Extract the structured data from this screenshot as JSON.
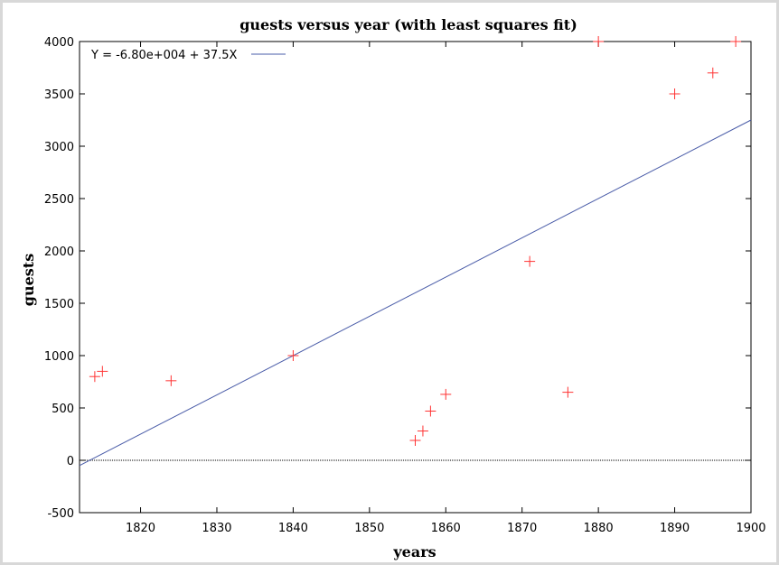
{
  "chart_data": {
    "type": "scatter",
    "title": "guests versus year (with least squares fit)",
    "xlabel": "years",
    "ylabel": "guests",
    "xlim": [
      1812,
      1900
    ],
    "ylim": [
      -500,
      4000
    ],
    "xticks": [
      1820,
      1830,
      1840,
      1850,
      1860,
      1870,
      1880,
      1890,
      1900
    ],
    "yticks": [
      -500,
      0,
      500,
      1000,
      1500,
      2000,
      2500,
      3000,
      3500,
      4000
    ],
    "zero_line": true,
    "grid": false,
    "legend_position": "top-left",
    "series": [
      {
        "type": "scatter",
        "marker": "plus",
        "color": "#ff3333",
        "points": [
          {
            "x": 1814,
            "y": 800
          },
          {
            "x": 1815,
            "y": 850
          },
          {
            "x": 1824,
            "y": 760
          },
          {
            "x": 1840,
            "y": 1000
          },
          {
            "x": 1856,
            "y": 190
          },
          {
            "x": 1857,
            "y": 280
          },
          {
            "x": 1858,
            "y": 470
          },
          {
            "x": 1860,
            "y": 630
          },
          {
            "x": 1871,
            "y": 1900
          },
          {
            "x": 1876,
            "y": 650
          },
          {
            "x": 1880,
            "y": 4000
          },
          {
            "x": 1890,
            "y": 3500
          },
          {
            "x": 1895,
            "y": 3700
          },
          {
            "x": 1898,
            "y": 4000
          }
        ]
      },
      {
        "type": "line",
        "name": "Y = -6.80e+004 + 37.5X",
        "color": "#4a5ca8",
        "intercept": -68000,
        "slope": 37.5
      }
    ]
  }
}
